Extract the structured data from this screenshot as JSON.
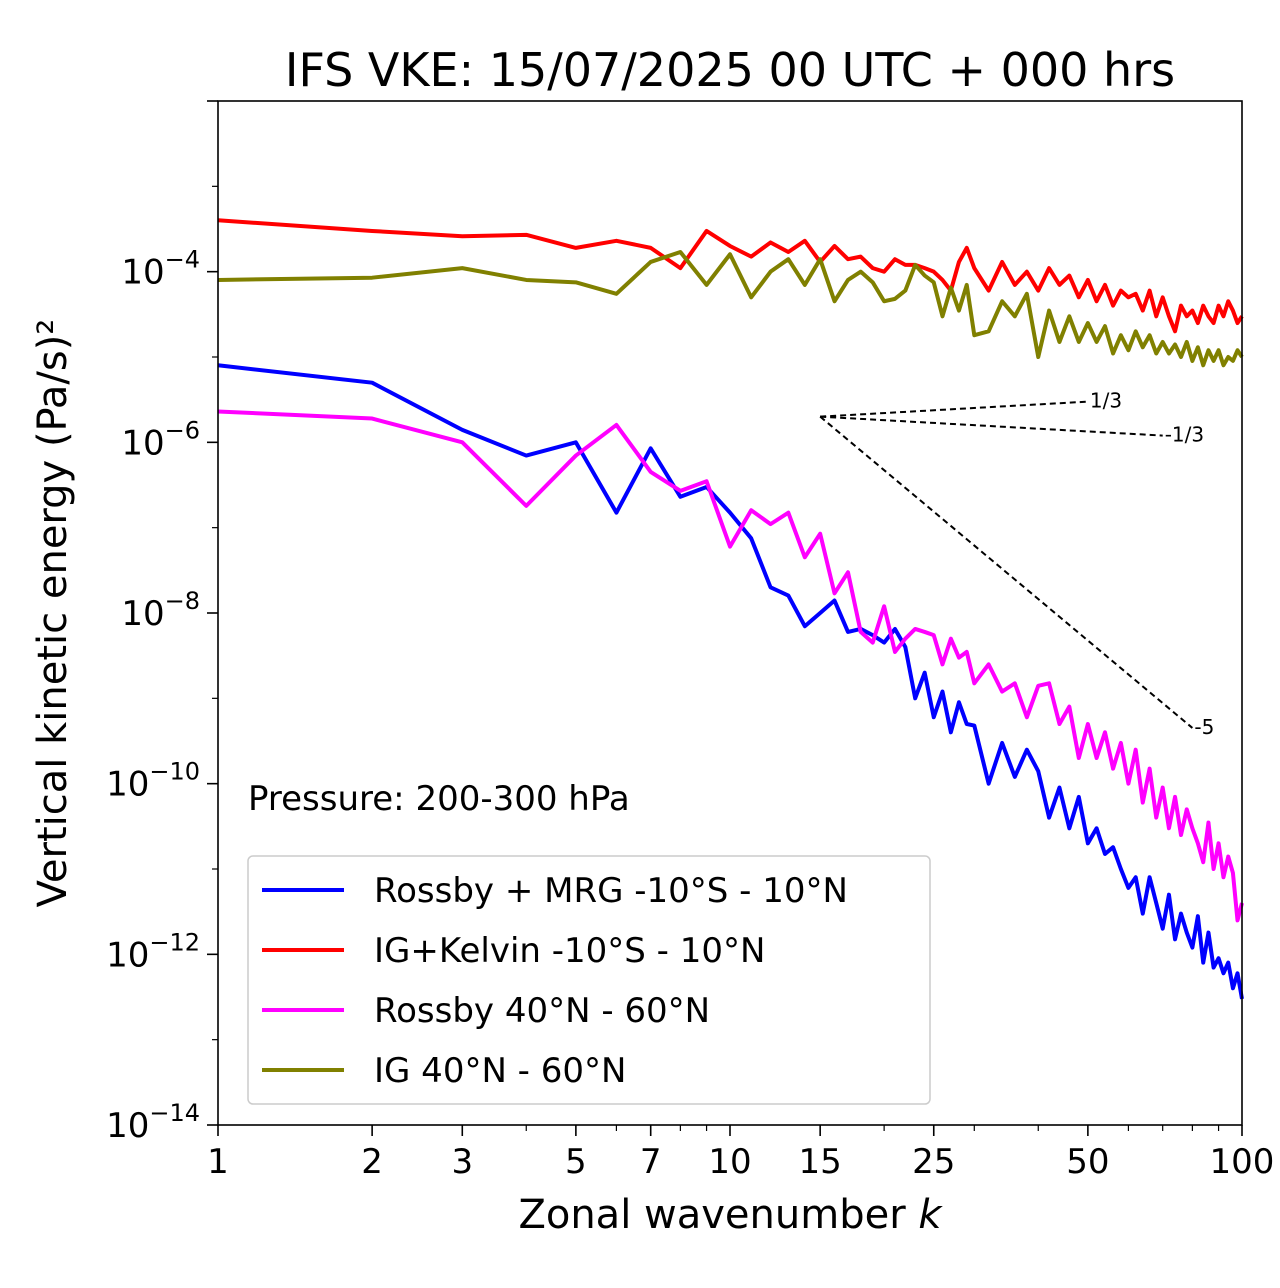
{
  "chart_data": {
    "type": "line",
    "title": "IFS VKE: 15/07/2025 00 UTC + 000 hrs",
    "xlabel": "Zonal wavenumber",
    "xlabel_var": "k",
    "ylabel": "Vertical kinetic energy (Pa/s)²",
    "x_scale": "log",
    "y_scale": "log",
    "xlim": [
      1,
      100
    ],
    "ylim": [
      1e-14,
      0.01
    ],
    "x_ticks": [
      1,
      2,
      3,
      5,
      7,
      10,
      15,
      25,
      50,
      100
    ],
    "x_tick_labels": [
      "1",
      "2",
      "3",
      "5",
      "7",
      "10",
      "15",
      "25",
      "50",
      "100"
    ],
    "y_ticks": [
      {
        "value": 0.0001,
        "base": "10",
        "exp": "−4"
      },
      {
        "value": 1e-06,
        "base": "10",
        "exp": "−6"
      },
      {
        "value": 1e-08,
        "base": "10",
        "exp": "−8"
      },
      {
        "value": 1e-10,
        "base": "10",
        "exp": "−10"
      },
      {
        "value": 1e-12,
        "base": "10",
        "exp": "−12"
      },
      {
        "value": 1e-14,
        "base": "10",
        "exp": "−14"
      }
    ],
    "grid": false,
    "legend_position": "lower-left",
    "annotation": "Pressure: 200-300 hPa",
    "reference_slopes": [
      {
        "label": "1/3",
        "x": [
          15,
          50
        ],
        "y": [
          2e-06,
          3e-06
        ]
      },
      {
        "label": "-1/3",
        "x": [
          15,
          70
        ],
        "y": [
          2e-06,
          1.2e-06
        ]
      },
      {
        "label": "-5",
        "x": [
          15,
          80
        ],
        "y": [
          2e-06,
          4.5e-10
        ]
      }
    ],
    "series": [
      {
        "name": "Rossby + MRG -10°S - 10°N",
        "color": "#0000ff",
        "x": [
          1,
          2,
          3,
          4,
          5,
          6,
          7,
          8,
          9,
          10,
          11,
          12,
          13,
          14,
          15,
          16,
          17,
          18,
          19,
          20,
          21,
          22,
          23,
          24,
          25,
          26,
          27,
          28,
          29,
          30,
          32,
          34,
          36,
          38,
          40,
          42,
          44,
          46,
          48,
          50,
          52,
          54,
          56,
          58,
          60,
          62,
          64,
          66,
          68,
          70,
          72,
          74,
          76,
          78,
          80,
          82,
          84,
          86,
          88,
          90,
          92,
          94,
          96,
          98,
          100
        ],
        "y": [
          8e-06,
          5e-06,
          1.4e-06,
          7e-07,
          1e-06,
          1.5e-07,
          8.5e-07,
          2.3e-07,
          3e-07,
          1.5e-07,
          7.5e-08,
          2e-08,
          1.6e-08,
          7e-09,
          1e-08,
          1.4e-08,
          6e-09,
          6.5e-09,
          5.5e-09,
          4.5e-09,
          6.5e-09,
          4e-09,
          1e-09,
          2e-09,
          6e-10,
          1.2e-09,
          4e-10,
          9e-10,
          5e-10,
          4.8e-10,
          1e-10,
          3e-10,
          1.2e-10,
          2.5e-10,
          1.4e-10,
          4e-11,
          9e-11,
          3e-11,
          7e-11,
          2e-11,
          3e-11,
          1.5e-11,
          1.8e-11,
          1e-11,
          6e-12,
          8e-12,
          3e-12,
          8e-12,
          4e-12,
          2e-12,
          5e-12,
          1.5e-12,
          3e-12,
          1.8e-12,
          1.2e-12,
          2.8e-12,
          8e-13,
          1.8e-12,
          7e-13,
          9e-13,
          6e-13,
          8e-13,
          4e-13,
          6e-13,
          3e-13
        ]
      },
      {
        "name": "IG+Kelvin -10°S - 10°N",
        "color": "#ff0000",
        "x": [
          1,
          2,
          3,
          4,
          5,
          6,
          7,
          8,
          9,
          10,
          11,
          12,
          13,
          14,
          15,
          16,
          17,
          18,
          19,
          20,
          21,
          22,
          23,
          24,
          25,
          26,
          27,
          28,
          29,
          30,
          32,
          34,
          36,
          38,
          40,
          42,
          44,
          46,
          48,
          50,
          52,
          54,
          56,
          58,
          60,
          62,
          64,
          66,
          68,
          70,
          72,
          74,
          76,
          78,
          80,
          82,
          84,
          86,
          88,
          90,
          92,
          94,
          96,
          98,
          100
        ],
        "y": [
          0.0004,
          0.0003,
          0.00026,
          0.00027,
          0.00019,
          0.00023,
          0.00019,
          0.00011,
          0.0003,
          0.0002,
          0.00015,
          0.00022,
          0.00017,
          0.00023,
          0.00013,
          0.0002,
          0.00014,
          0.00015,
          0.00011,
          0.0001,
          0.00014,
          0.00012,
          0.00012,
          0.00011,
          0.0001,
          8e-05,
          6e-05,
          0.00013,
          0.00019,
          0.00011,
          6e-05,
          0.00013,
          7e-05,
          0.0001,
          6e-05,
          0.00011,
          7e-05,
          9e-05,
          5e-05,
          8e-05,
          4.5e-05,
          7e-05,
          4e-05,
          6e-05,
          5e-05,
          5.5e-05,
          3.5e-05,
          6e-05,
          3e-05,
          5e-05,
          3e-05,
          2e-05,
          4e-05,
          3e-05,
          3.5e-05,
          2.5e-05,
          4e-05,
          3e-05,
          2.5e-05,
          4e-05,
          3e-05,
          4.5e-05,
          3.5e-05,
          2.5e-05,
          3e-05
        ]
      },
      {
        "name": "Rossby 40°N - 60°N",
        "color": "#ff00ff",
        "x": [
          1,
          2,
          3,
          4,
          5,
          6,
          7,
          8,
          9,
          10,
          11,
          12,
          13,
          14,
          15,
          16,
          17,
          18,
          19,
          20,
          21,
          22,
          23,
          24,
          25,
          26,
          27,
          28,
          29,
          30,
          32,
          34,
          36,
          38,
          40,
          42,
          44,
          46,
          48,
          50,
          52,
          54,
          56,
          58,
          60,
          62,
          64,
          66,
          68,
          70,
          72,
          74,
          76,
          78,
          80,
          82,
          84,
          86,
          88,
          90,
          92,
          94,
          96,
          98,
          100
        ],
        "y": [
          2.3e-06,
          1.9e-06,
          1e-06,
          1.8e-07,
          7e-07,
          1.6e-06,
          4.5e-07,
          2.7e-07,
          3.5e-07,
          6e-08,
          1.6e-07,
          1.1e-07,
          1.5e-07,
          4.5e-08,
          8.5e-08,
          1.7e-08,
          3e-08,
          6e-09,
          4.5e-09,
          1.2e-08,
          3.5e-09,
          5e-09,
          6.5e-09,
          6e-09,
          5.5e-09,
          2.5e-09,
          5e-09,
          3e-09,
          3.5e-09,
          1.5e-09,
          2.5e-09,
          1.2e-09,
          1.5e-09,
          6e-10,
          1.4e-09,
          1.5e-09,
          5e-10,
          8e-10,
          2e-10,
          5e-10,
          2e-10,
          4e-10,
          1.5e-10,
          3e-10,
          1e-10,
          2.5e-10,
          6e-11,
          1.5e-10,
          4e-11,
          9e-11,
          3e-11,
          7e-11,
          2.5e-11,
          5e-11,
          3e-11,
          2e-11,
          1.2e-11,
          3.5e-11,
          1e-11,
          2e-11,
          8e-12,
          1.4e-11,
          9e-12,
          2.5e-12,
          4e-12
        ]
      },
      {
        "name": "IG 40°N - 60°N",
        "color": "#808000",
        "x": [
          1,
          2,
          3,
          4,
          5,
          6,
          7,
          8,
          9,
          10,
          11,
          12,
          13,
          14,
          15,
          16,
          17,
          18,
          19,
          20,
          21,
          22,
          23,
          24,
          25,
          26,
          27,
          28,
          29,
          30,
          32,
          34,
          36,
          38,
          40,
          42,
          44,
          46,
          48,
          50,
          52,
          54,
          56,
          58,
          60,
          62,
          64,
          66,
          68,
          70,
          72,
          74,
          76,
          78,
          80,
          82,
          84,
          86,
          88,
          90,
          92,
          94,
          96,
          98,
          100
        ],
        "y": [
          8e-05,
          8.5e-05,
          0.00011,
          8e-05,
          7.5e-05,
          5.5e-05,
          0.00013,
          0.00017,
          7e-05,
          0.00016,
          5e-05,
          0.0001,
          0.00014,
          7e-05,
          0.00014,
          4.5e-05,
          8e-05,
          0.0001,
          7.5e-05,
          4.5e-05,
          4.8e-05,
          6e-05,
          0.00012,
          9e-05,
          7.5e-05,
          3e-05,
          6.5e-05,
          3.5e-05,
          7e-05,
          1.8e-05,
          2e-05,
          4.5e-05,
          3e-05,
          5.5e-05,
          1e-05,
          3.5e-05,
          1.5e-05,
          3e-05,
          1.5e-05,
          2.5e-05,
          1.5e-05,
          2.3e-05,
          1.1e-05,
          1.8e-05,
          1.2e-05,
          2e-05,
          1.3e-05,
          1.8e-05,
          1.1e-05,
          1.5e-05,
          1.1e-05,
          1.4e-05,
          1e-05,
          1.5e-05,
          9e-06,
          1.3e-05,
          8e-06,
          1.2e-05,
          9e-06,
          1.2e-05,
          8e-06,
          1e-05,
          9e-06,
          1.2e-05,
          1e-05
        ]
      }
    ]
  }
}
